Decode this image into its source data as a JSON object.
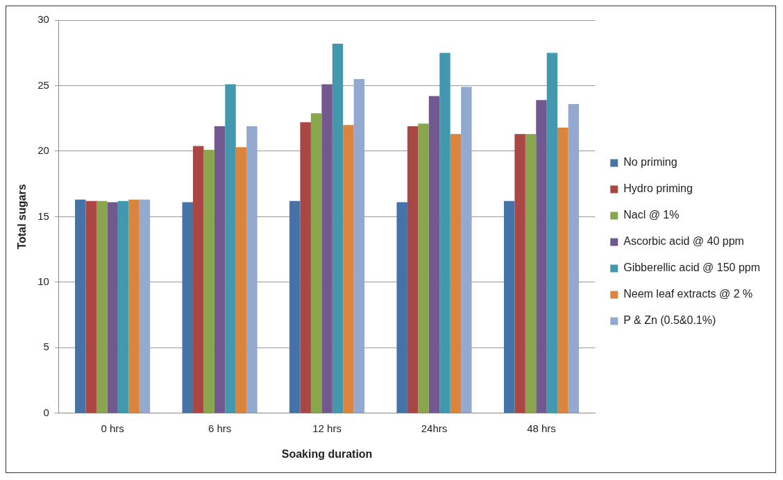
{
  "chart_data": {
    "type": "bar",
    "xlabel": "Soaking duration",
    "ylabel": "Total sugars",
    "categories": [
      "0 hrs",
      "6 hrs",
      "12 hrs",
      "24hrs",
      "48 hrs"
    ],
    "series": [
      {
        "name": "No priming",
        "color": "#4572a7",
        "values": [
          16.3,
          16.1,
          16.2,
          16.1,
          16.2
        ]
      },
      {
        "name": "Hydro priming",
        "color": "#aa4643",
        "values": [
          16.2,
          20.4,
          22.2,
          21.9,
          21.3
        ]
      },
      {
        "name": "Nacl @ 1%",
        "color": "#89a54e",
        "values": [
          16.2,
          20.1,
          22.9,
          22.1,
          21.3
        ]
      },
      {
        "name": "Ascorbic acid @ 40 ppm",
        "color": "#71588f",
        "values": [
          16.1,
          21.9,
          25.1,
          24.2,
          23.9
        ]
      },
      {
        "name": "Gibberellic acid @ 150 ppm",
        "color": "#4198af",
        "values": [
          16.2,
          25.1,
          28.2,
          27.5,
          27.5
        ]
      },
      {
        "name": "Neem leaf extracts @ 2 %",
        "color": "#db843d",
        "values": [
          16.3,
          20.3,
          22.0,
          21.3,
          21.8
        ]
      },
      {
        "name": "P & Zn (0.5&0.1%)",
        "color": "#93a9cf",
        "values": [
          16.3,
          21.9,
          25.5,
          24.9,
          23.6
        ]
      }
    ],
    "ylim": [
      0,
      30
    ],
    "yticks": [
      0,
      5,
      10,
      15,
      20,
      25,
      30
    ],
    "grid": "y",
    "legend": "right"
  }
}
